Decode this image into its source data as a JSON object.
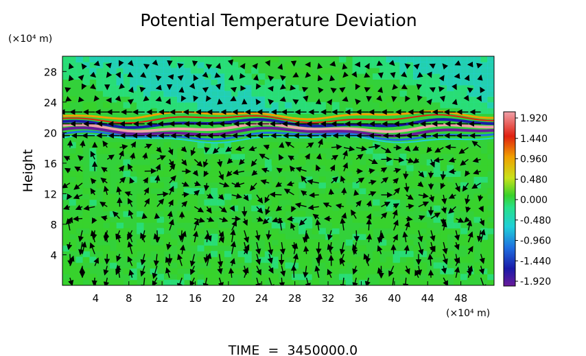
{
  "chart_data": {
    "type": "heatmap",
    "title": "Potential Temperature Deviation",
    "ylabel": "Height",
    "x_unit": "(×10⁴ m)",
    "y_unit": "(×10⁴ m)",
    "xlim": [
      0,
      52
    ],
    "ylim": [
      0,
      30
    ],
    "x_ticks": [
      4,
      8,
      12,
      16,
      20,
      24,
      28,
      32,
      36,
      40,
      44,
      48
    ],
    "y_ticks": [
      4,
      8,
      12,
      16,
      20,
      24,
      28
    ],
    "colorbar": {
      "ticks": [
        "1.920",
        "1.440",
        "0.960",
        "0.480",
        "0.000",
        "-0.480",
        "-0.960",
        "-1.440",
        "-1.920"
      ],
      "range": [
        -1.92,
        1.92
      ],
      "colors": [
        "#6a1b9a",
        "#1a1aa8",
        "#1f6fe0",
        "#1fcfd8",
        "#27e08a",
        "#39d12a",
        "#c8e21a",
        "#f0a000",
        "#e02010",
        "#f0a0a8"
      ]
    },
    "overlay": "wind vectors",
    "footer": "TIME  =  3450000.0"
  }
}
